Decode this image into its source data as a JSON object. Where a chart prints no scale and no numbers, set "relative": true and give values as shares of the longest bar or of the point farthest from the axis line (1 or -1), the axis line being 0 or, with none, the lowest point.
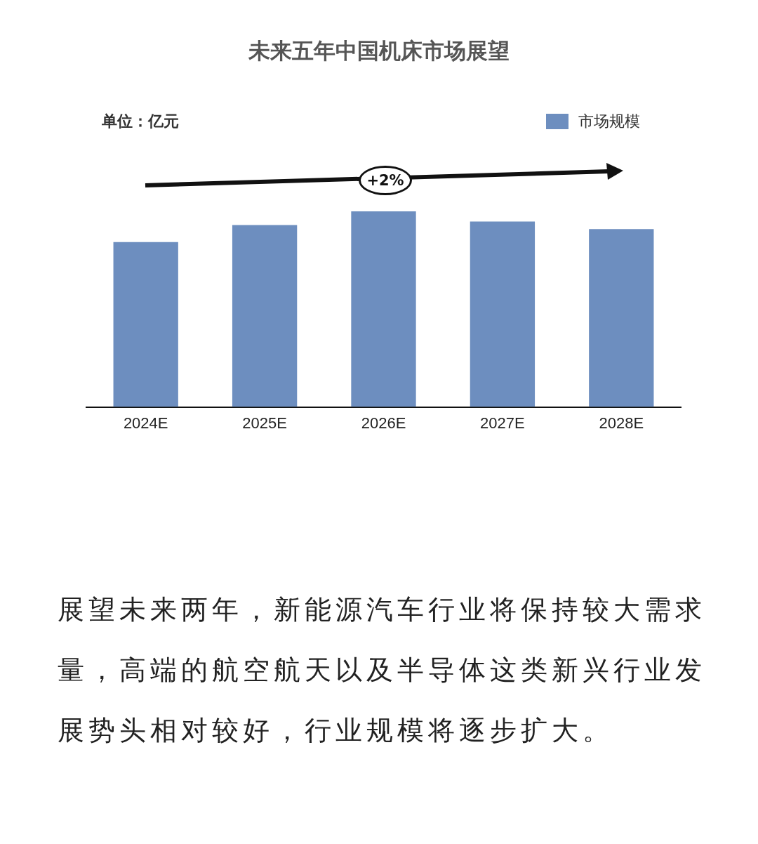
{
  "chart_data": {
    "type": "bar",
    "title": "未来五年中国机床市场展望",
    "relative": true,
    "legend": "top right",
    "categories": [
      "2024E",
      "2025E",
      "2026E",
      "2027E",
      "2028E"
    ],
    "series": [
      {
        "name": "市场规模",
        "color": "#6d8ebf",
        "values": [
          0.843,
          0.93,
          1,
          0.948,
          0.909
        ]
      }
    ],
    "annotations": [
      "单位：亿元",
      "+2%",
      "展望未来两年，新能源汽车行业将保持较大需求量，高端的航空航天以及半导体这类新兴行业发展势头相对较好，行业规模将逐步扩大。"
    ]
  }
}
